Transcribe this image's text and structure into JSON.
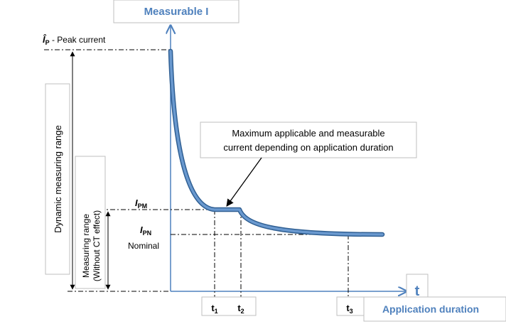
{
  "y_axis": {
    "title": "Measurable I"
  },
  "x_axis": {
    "symbol": "t",
    "title": "Application duration"
  },
  "peak": {
    "symbol": "Î",
    "sub": "P",
    "text": " - Peak current"
  },
  "ipm": {
    "symbol": "I",
    "sub": "PM"
  },
  "ipn": {
    "symbol": "I",
    "sub": "PN",
    "note": "Nominal"
  },
  "ranges": {
    "dynamic": "Dynamic measuring range",
    "measuring_line1": "Measuring range",
    "measuring_line2": "(Without CT effect)"
  },
  "callout": {
    "line1": "Maximum applicable and measurable",
    "line2": "current depending on application duration"
  },
  "times": [
    {
      "symbol": "t",
      "sub": "1"
    },
    {
      "symbol": "t",
      "sub": "2"
    },
    {
      "symbol": "t",
      "sub": "3"
    }
  ],
  "colors": {
    "axis": "#4f81bd",
    "curve": "#4f81bd",
    "curve_edge": "#2f5f93",
    "label_blue": "#4f81bd"
  }
}
